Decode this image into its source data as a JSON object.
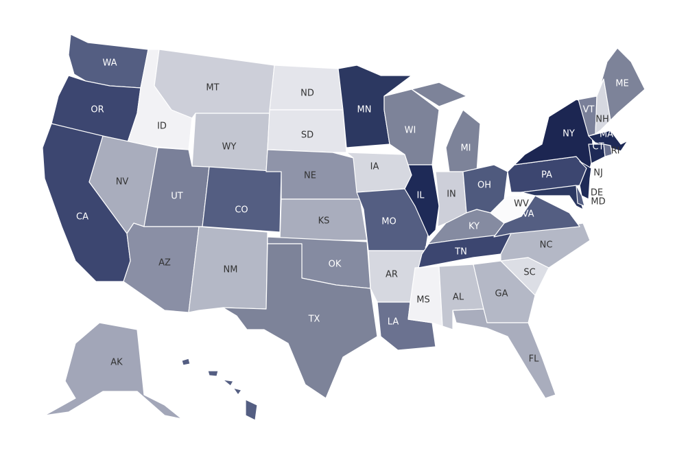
{
  "map": {
    "states": [
      {
        "code": "WA",
        "color": "#545e82"
      },
      {
        "code": "OR",
        "color": "#3c4670"
      },
      {
        "code": "CA",
        "color": "#3c4670"
      },
      {
        "code": "ID",
        "color": "#f2f2f5"
      },
      {
        "code": "NV",
        "color": "#a9adbd"
      },
      {
        "code": "MT",
        "color": "#cdcfd9"
      },
      {
        "code": "WY",
        "color": "#c3c6d1"
      },
      {
        "code": "UT",
        "color": "#7a8099"
      },
      {
        "code": "AZ",
        "color": "#8a8fa5"
      },
      {
        "code": "CO",
        "color": "#545e82"
      },
      {
        "code": "NM",
        "color": "#b4b8c6"
      },
      {
        "code": "ND",
        "color": "#e4e5eb"
      },
      {
        "code": "SD",
        "color": "#e4e5eb"
      },
      {
        "code": "NE",
        "color": "#8f94a9"
      },
      {
        "code": "KS",
        "color": "#a9adbd"
      },
      {
        "code": "OK",
        "color": "#858ba1"
      },
      {
        "code": "TX",
        "color": "#7d8399"
      },
      {
        "code": "MN",
        "color": "#2c3861"
      },
      {
        "code": "IA",
        "color": "#d6d8e0"
      },
      {
        "code": "MO",
        "color": "#545e82"
      },
      {
        "code": "AR",
        "color": "#d6d8e0"
      },
      {
        "code": "LA",
        "color": "#6b7290"
      },
      {
        "code": "WI",
        "color": "#7d8399"
      },
      {
        "code": "IL",
        "color": "#1e2a57"
      },
      {
        "code": "MI",
        "color": "#7d8399"
      },
      {
        "code": "IN",
        "color": "#cdcfd9"
      },
      {
        "code": "OH",
        "color": "#4f5a7e"
      },
      {
        "code": "KY",
        "color": "#858ba1"
      },
      {
        "code": "TN",
        "color": "#3c4670"
      },
      {
        "code": "MS",
        "color": "#f2f2f5"
      },
      {
        "code": "AL",
        "color": "#c3c6d1"
      },
      {
        "code": "GA",
        "color": "#b4b8c6"
      },
      {
        "code": "FL",
        "color": "#a9adbd"
      },
      {
        "code": "SC",
        "color": "#dcdee5"
      },
      {
        "code": "NC",
        "color": "#b4b8c6"
      },
      {
        "code": "VA",
        "color": "#545e82"
      },
      {
        "code": "WV",
        "color": "#fbfbfc"
      },
      {
        "code": "PA",
        "color": "#3c4670"
      },
      {
        "code": "NY",
        "color": "#1c2652"
      },
      {
        "code": "NJ",
        "color": "#1e2a57"
      },
      {
        "code": "MD",
        "color": "#2c3861"
      },
      {
        "code": "DE",
        "color": "#545e82"
      },
      {
        "code": "VT",
        "color": "#7a8099"
      },
      {
        "code": "NH",
        "color": "#d6d8e0"
      },
      {
        "code": "ME",
        "color": "#7d8399"
      },
      {
        "code": "MA",
        "color": "#1e2a57"
      },
      {
        "code": "CT",
        "color": "#1e2a57"
      },
      {
        "code": "RI",
        "color": "#6b7290"
      },
      {
        "code": "AK",
        "color": "#a2a6b8"
      },
      {
        "code": "HI",
        "color": "#545e82"
      }
    ]
  }
}
